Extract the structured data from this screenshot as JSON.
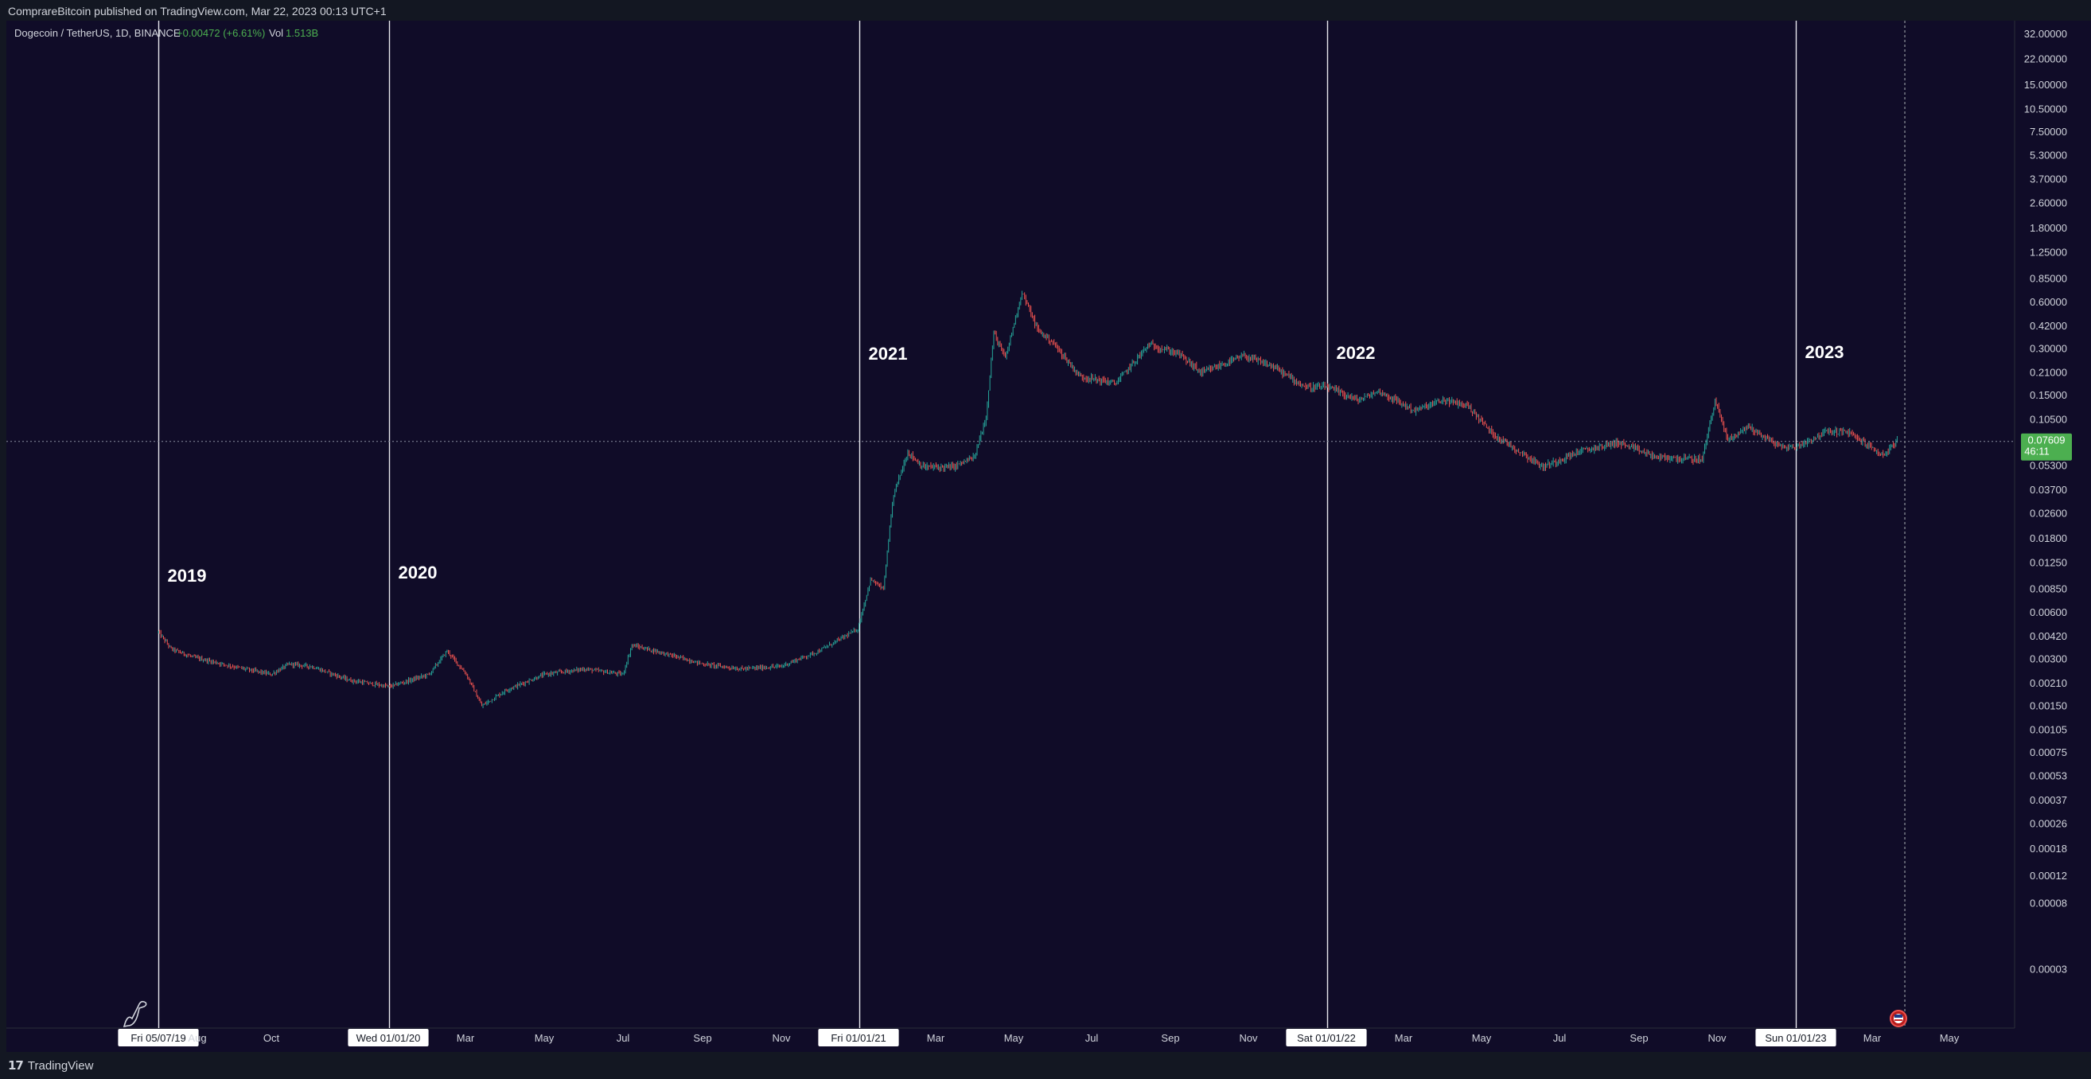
{
  "header": {
    "published_by": "ComprareBitcoin published on TradingView.com, Mar 22, 2023 00:13 UTC+1"
  },
  "legend": {
    "symbol": "Dogecoin / TetherUS, 1D, BINANCE",
    "change": "+0.00472 (+6.61%)",
    "vol_label": "Vol",
    "vol_value": "1.513B"
  },
  "footer": {
    "brand": "TradingView"
  },
  "colors": {
    "background": "#100c28",
    "frame": "#131722",
    "up": "#26a69a",
    "down": "#ef5350",
    "price_label": "#4caf50",
    "text": "#d1d4dc"
  },
  "chart_data": {
    "type": "candlestick",
    "symbol": "DOGE/USDT",
    "timeframe": "1D",
    "exchange": "BINANCE",
    "y_scale": "log",
    "ylim": [
      2e-05,
      32
    ],
    "y_ticks": [
      "32.00000",
      "22.00000",
      "15.00000",
      "10.50000",
      "7.50000",
      "5.30000",
      "3.70000",
      "2.60000",
      "1.80000",
      "1.25000",
      "0.85000",
      "0.60000",
      "0.42000",
      "0.30000",
      "0.21000",
      "0.15000",
      "0.10500",
      "0.07609",
      "0.05300",
      "0.03700",
      "0.02600",
      "0.01800",
      "0.01250",
      "0.00850",
      "0.00600",
      "0.00420",
      "0.00300",
      "0.00210",
      "0.00150",
      "0.00105",
      "0.00075",
      "0.00053",
      "0.00037",
      "0.00026",
      "0.00018",
      "0.00012",
      "0.00008",
      "0.00003"
    ],
    "x_ticks": [
      "Fri 05/07/19",
      "Aug",
      "Oct",
      "Wed 01/01/20",
      "Mar",
      "May",
      "Jul",
      "Sep",
      "Nov",
      "Fri 01/01/21",
      "Mar",
      "May",
      "Jul",
      "Sep",
      "Nov",
      "Sat 01/01/22",
      "Mar",
      "May",
      "Jul",
      "Sep",
      "Nov",
      "Sun 01/01/23",
      "Mar",
      "May"
    ],
    "x_highlighted": [
      "Fri 05/07/19",
      "Wed 01/01/20",
      "Fri 01/01/21",
      "Sat 01/01/22",
      "Sun 01/01/23"
    ],
    "year_markers": [
      {
        "label": "2019",
        "date": "2019-07-05"
      },
      {
        "label": "2020",
        "date": "2020-01-01"
      },
      {
        "label": "2021",
        "date": "2021-01-01"
      },
      {
        "label": "2022",
        "date": "2022-01-01"
      },
      {
        "label": "2023",
        "date": "2023-01-01"
      }
    ],
    "last_price": "0.07609",
    "countdown": "46:11",
    "series": [
      {
        "points": [
          [
            "2019-07-05",
            0.0045
          ],
          [
            "2019-07-15",
            0.0035
          ],
          [
            "2019-08-01",
            0.0031
          ],
          [
            "2019-09-01",
            0.0027
          ],
          [
            "2019-10-01",
            0.0024
          ],
          [
            "2019-10-15",
            0.0028
          ],
          [
            "2019-11-01",
            0.0027
          ],
          [
            "2019-12-01",
            0.0022
          ],
          [
            "2020-01-01",
            0.002
          ],
          [
            "2020-02-01",
            0.0024
          ],
          [
            "2020-02-15",
            0.0034
          ],
          [
            "2020-03-01",
            0.0024
          ],
          [
            "2020-03-13",
            0.0015
          ],
          [
            "2020-04-01",
            0.0019
          ],
          [
            "2020-05-01",
            0.0024
          ],
          [
            "2020-06-01",
            0.0026
          ],
          [
            "2020-07-01",
            0.0024
          ],
          [
            "2020-07-08",
            0.0037
          ],
          [
            "2020-08-01",
            0.0033
          ],
          [
            "2020-09-01",
            0.0028
          ],
          [
            "2020-10-01",
            0.0026
          ],
          [
            "2020-11-01",
            0.0027
          ],
          [
            "2020-12-01",
            0.0034
          ],
          [
            "2020-12-31",
            0.0047
          ],
          [
            "2021-01-10",
            0.0098
          ],
          [
            "2021-01-20",
            0.0085
          ],
          [
            "2021-01-28",
            0.035
          ],
          [
            "2021-02-08",
            0.065
          ],
          [
            "2021-02-20",
            0.052
          ],
          [
            "2021-03-15",
            0.052
          ],
          [
            "2021-04-01",
            0.06
          ],
          [
            "2021-04-10",
            0.11
          ],
          [
            "2021-04-16",
            0.38
          ],
          [
            "2021-04-25",
            0.26
          ],
          [
            "2021-05-08",
            0.7
          ],
          [
            "2021-05-20",
            0.4
          ],
          [
            "2021-06-01",
            0.33
          ],
          [
            "2021-06-22",
            0.2
          ],
          [
            "2021-07-20",
            0.18
          ],
          [
            "2021-08-15",
            0.32
          ],
          [
            "2021-09-07",
            0.28
          ],
          [
            "2021-09-25",
            0.21
          ],
          [
            "2021-10-28",
            0.27
          ],
          [
            "2021-11-20",
            0.23
          ],
          [
            "2021-12-15",
            0.17
          ],
          [
            "2022-01-01",
            0.17
          ],
          [
            "2022-01-25",
            0.14
          ],
          [
            "2022-02-10",
            0.16
          ],
          [
            "2022-03-10",
            0.12
          ],
          [
            "2022-04-01",
            0.14
          ],
          [
            "2022-04-20",
            0.13
          ],
          [
            "2022-05-10",
            0.085
          ],
          [
            "2022-06-18",
            0.052
          ],
          [
            "2022-07-15",
            0.065
          ],
          [
            "2022-08-15",
            0.075
          ],
          [
            "2022-09-15",
            0.06
          ],
          [
            "2022-10-20",
            0.058
          ],
          [
            "2022-10-30",
            0.14
          ],
          [
            "2022-11-09",
            0.078
          ],
          [
            "2022-11-25",
            0.095
          ],
          [
            "2022-12-20",
            0.07
          ],
          [
            "2023-01-01",
            0.07
          ],
          [
            "2023-01-25",
            0.088
          ],
          [
            "2023-02-10",
            0.088
          ],
          [
            "2023-03-10",
            0.062
          ],
          [
            "2023-03-21",
            0.076
          ]
        ]
      }
    ]
  }
}
